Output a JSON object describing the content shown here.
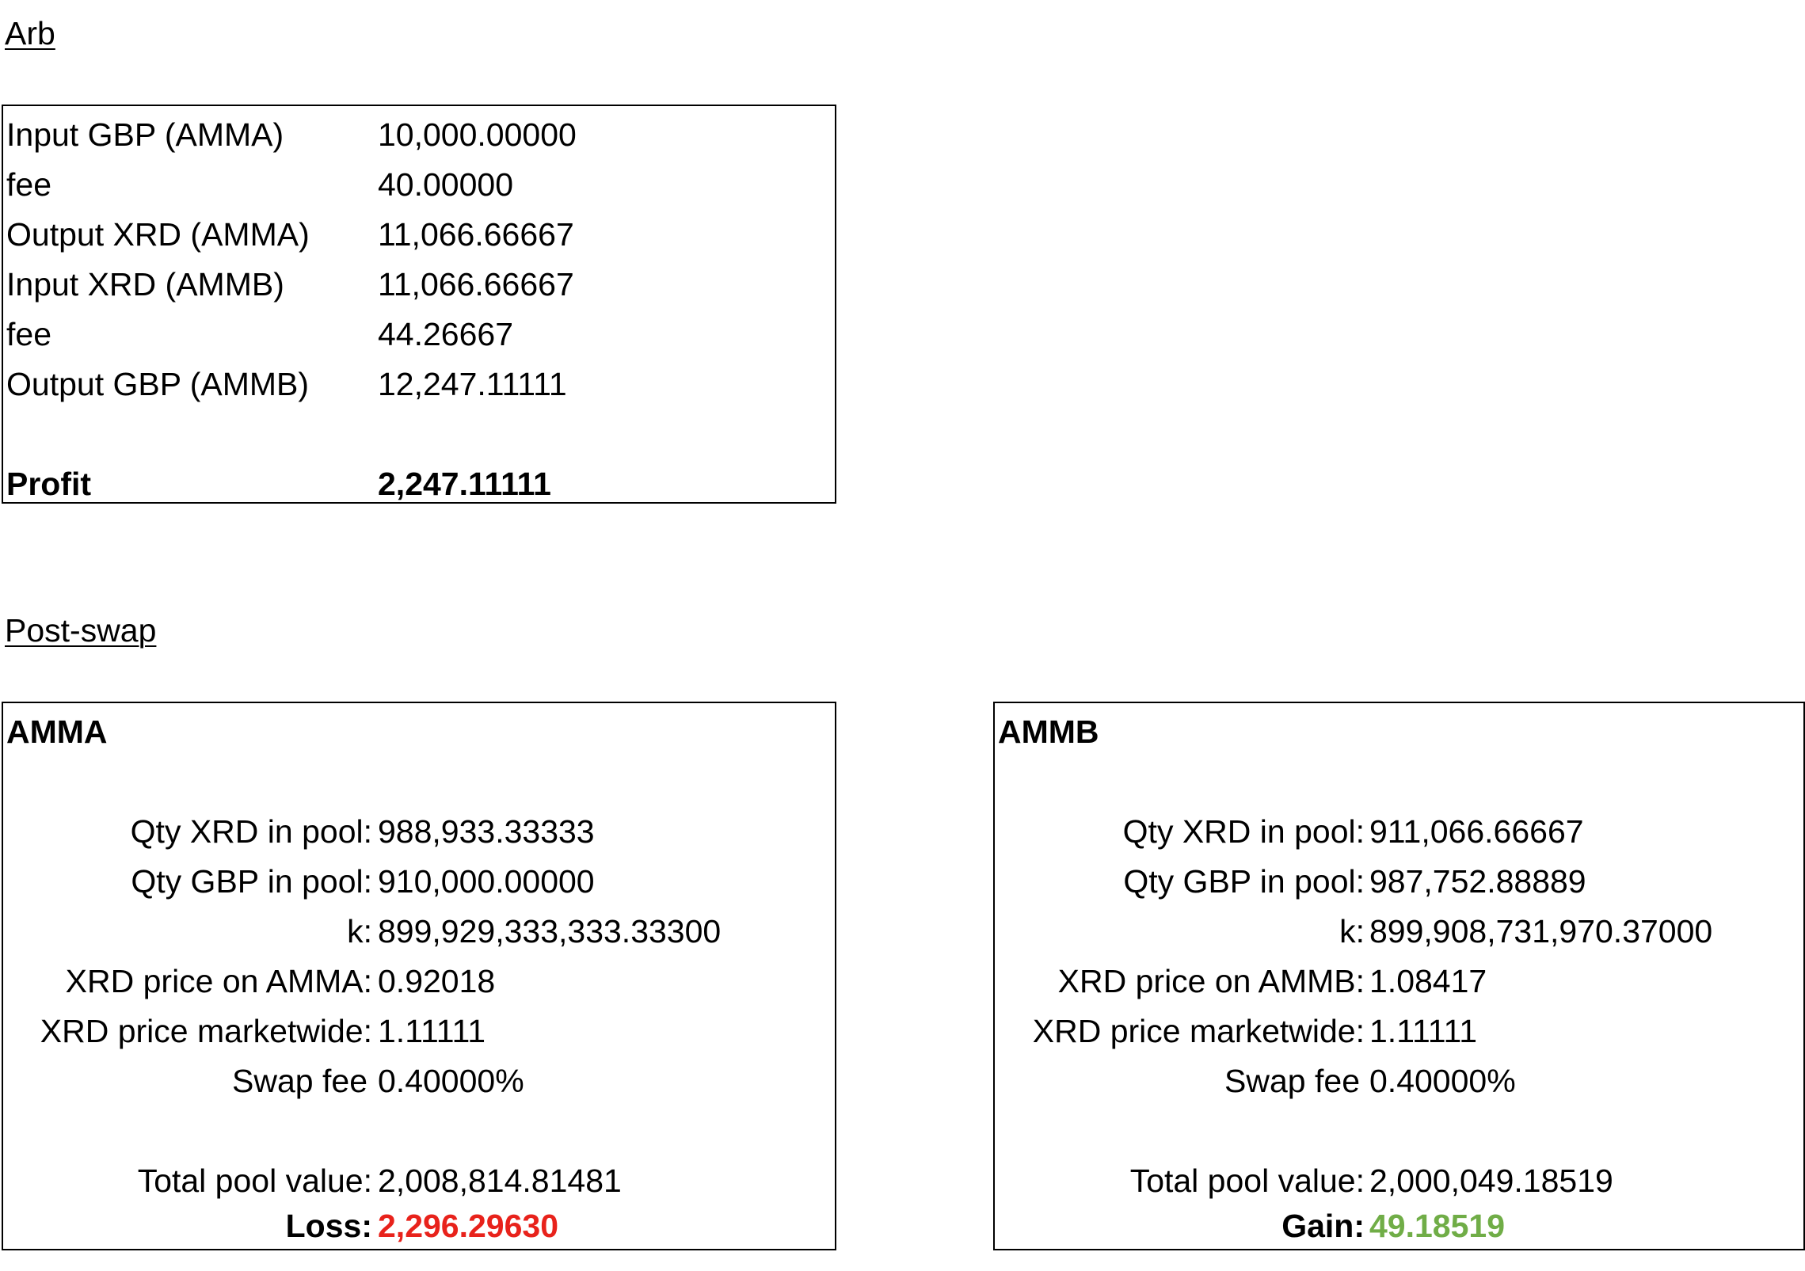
{
  "arb": {
    "heading": "Arb",
    "rows": [
      {
        "label": "Input GBP (AMMA)",
        "value": "10,000.00000"
      },
      {
        "label": "fee",
        "value": "40.00000"
      },
      {
        "label": "Output XRD (AMMA)",
        "value": "11,066.66667"
      },
      {
        "label": "Input XRD (AMMB)",
        "value": "11,066.66667"
      },
      {
        "label": "fee",
        "value": "44.26667"
      },
      {
        "label": "Output GBP (AMMB)",
        "value": "12,247.11111"
      }
    ],
    "profit_label": "Profit",
    "profit_value": "2,247.11111"
  },
  "post_swap": {
    "heading": "Post-swap",
    "amma": {
      "title": "AMMA",
      "rows": [
        {
          "label": "Qty XRD in pool:",
          "value": "988,933.33333"
        },
        {
          "label": "Qty GBP in pool:",
          "value": "910,000.00000"
        },
        {
          "label": "k:",
          "value": "899,929,333,333.33300"
        },
        {
          "label": "XRD price on AMMA:",
          "value": "0.92018"
        },
        {
          "label": "XRD price marketwide:",
          "value": "1.11111"
        },
        {
          "label": "Swap fee",
          "value": "0.40000%"
        }
      ],
      "total_label": "Total pool value:",
      "total_value": "2,008,814.81481",
      "result_label": "Loss:",
      "result_value": "2,296.29630"
    },
    "ammb": {
      "title": "AMMB",
      "rows": [
        {
          "label": "Qty XRD in pool:",
          "value": "911,066.66667"
        },
        {
          "label": "Qty GBP in pool:",
          "value": "987,752.88889"
        },
        {
          "label": "k:",
          "value": "899,908,731,970.37000"
        },
        {
          "label": "XRD price on AMMB:",
          "value": "1.08417"
        },
        {
          "label": "XRD price marketwide:",
          "value": "1.11111"
        },
        {
          "label": "Swap fee",
          "value": "0.40000%"
        }
      ],
      "total_label": "Total pool value:",
      "total_value": "2,000,049.18519",
      "result_label": "Gain:",
      "result_value": "49.18519"
    }
  },
  "colors": {
    "loss": "#e8221b",
    "gain": "#70ad47"
  }
}
